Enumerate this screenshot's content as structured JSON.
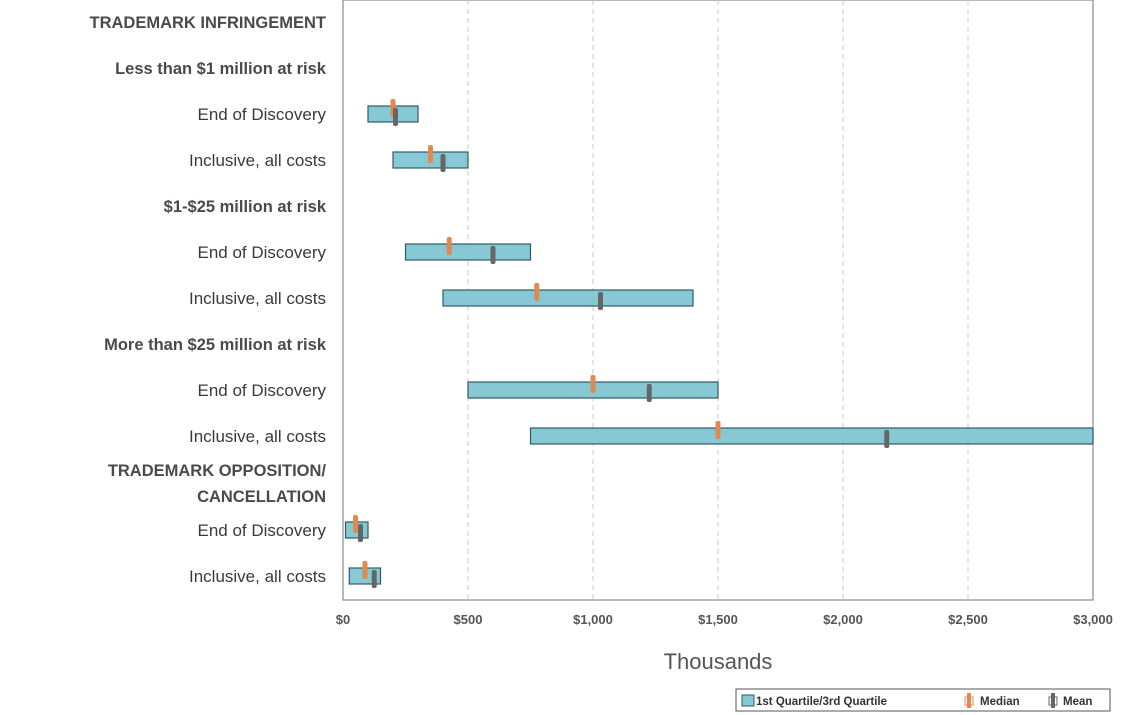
{
  "chart_data": {
    "type": "box-range",
    "xlabel": "Thousands",
    "xlim": [
      0,
      3000
    ],
    "x_ticks": [
      0,
      500,
      1000,
      1500,
      2000,
      2500,
      3000
    ],
    "x_tick_labels": [
      "$0",
      "$500",
      "$1,000",
      "$1,500",
      "$2,000",
      "$2,500",
      "$3,000"
    ],
    "grid": "vertical-dashed",
    "legend_position": "bottom-right",
    "legend": {
      "quartile": "1st Quartile/3rd Quartile",
      "median": "Median",
      "mean": "Mean"
    },
    "colors": {
      "quartile_box": "#86c8d3",
      "quartile_box_stroke": "#2f5b67",
      "median": "#e08a52",
      "mean": "#666666",
      "grid": "#c8c8c8",
      "frame": "#888888"
    },
    "rows": [
      {
        "label": "TRADEMARK INFRINGEMENT",
        "header": true
      },
      {
        "label": "Less than $1 million at risk",
        "header": true
      },
      {
        "label": "End of Discovery",
        "q1": 100,
        "q3": 300,
        "median": 200,
        "mean": 210
      },
      {
        "label": "Inclusive, all costs",
        "q1": 200,
        "q3": 500,
        "median": 350,
        "mean": 400
      },
      {
        "label": "$1-$25 million at risk",
        "header": true
      },
      {
        "label": "End of Discovery",
        "q1": 250,
        "q3": 750,
        "median": 425,
        "mean": 600
      },
      {
        "label": "Inclusive, all costs",
        "q1": 400,
        "q3": 1400,
        "median": 775,
        "mean": 1030
      },
      {
        "label": "More than $25 million at risk",
        "header": true
      },
      {
        "label": "End of Discovery",
        "q1": 500,
        "q3": 1500,
        "median": 1000,
        "mean": 1225
      },
      {
        "label": "Inclusive, all costs",
        "q1": 750,
        "q3": 3000,
        "median": 1500,
        "mean": 2175
      },
      {
        "label": "TRADEMARK OPPOSITION/",
        "label2": "CANCELLATION",
        "header": true
      },
      {
        "label": "End of Discovery",
        "q1": 10,
        "q3": 100,
        "median": 50,
        "mean": 70
      },
      {
        "label": "Inclusive, all costs",
        "q1": 25,
        "q3": 150,
        "median": 88,
        "mean": 125
      }
    ]
  }
}
